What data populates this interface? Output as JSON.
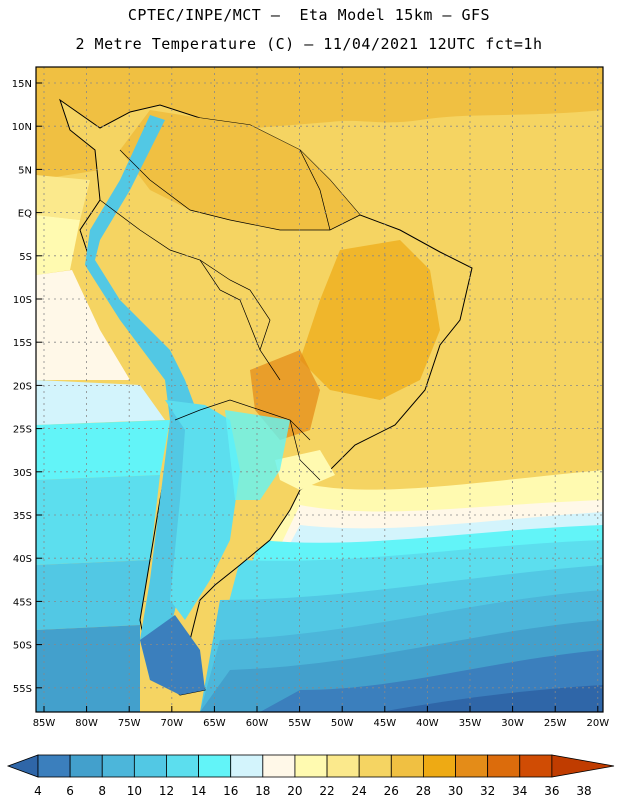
{
  "header": {
    "line1": "CPTEC/INPE/MCT –  Eta Model 15km – GFS",
    "line2": "2 Metre Temperature (C) – 11/04/2021 12UTC fct=1h"
  },
  "map": {
    "lat_labels": [
      "15N",
      "10N",
      "5N",
      "EQ",
      "5S",
      "10S",
      "15S",
      "20S",
      "25S",
      "30S",
      "35S",
      "40S",
      "45S",
      "50S",
      "55S"
    ],
    "lon_labels": [
      "85W",
      "80W",
      "75W",
      "70W",
      "65W",
      "60W",
      "55W",
      "50W",
      "45W",
      "40W",
      "35W",
      "30W",
      "25W",
      "20W"
    ]
  },
  "colorbar": {
    "labels": [
      "4",
      "6",
      "8",
      "10",
      "12",
      "14",
      "16",
      "18",
      "20",
      "22",
      "24",
      "26",
      "28",
      "30",
      "32",
      "34",
      "36",
      "38"
    ],
    "colors": [
      "#2f66a8",
      "#3b7fbd",
      "#43a0cc",
      "#4cb6da",
      "#52c8e4",
      "#5cdeee",
      "#62f4f8",
      "#d3f4fc",
      "#fff8e8",
      "#fffab0",
      "#fbe98c",
      "#f5d462",
      "#f0c042",
      "#eeaa14",
      "#e48c18",
      "#dc6c0c",
      "#d04c04",
      "#c03c00"
    ]
  }
}
